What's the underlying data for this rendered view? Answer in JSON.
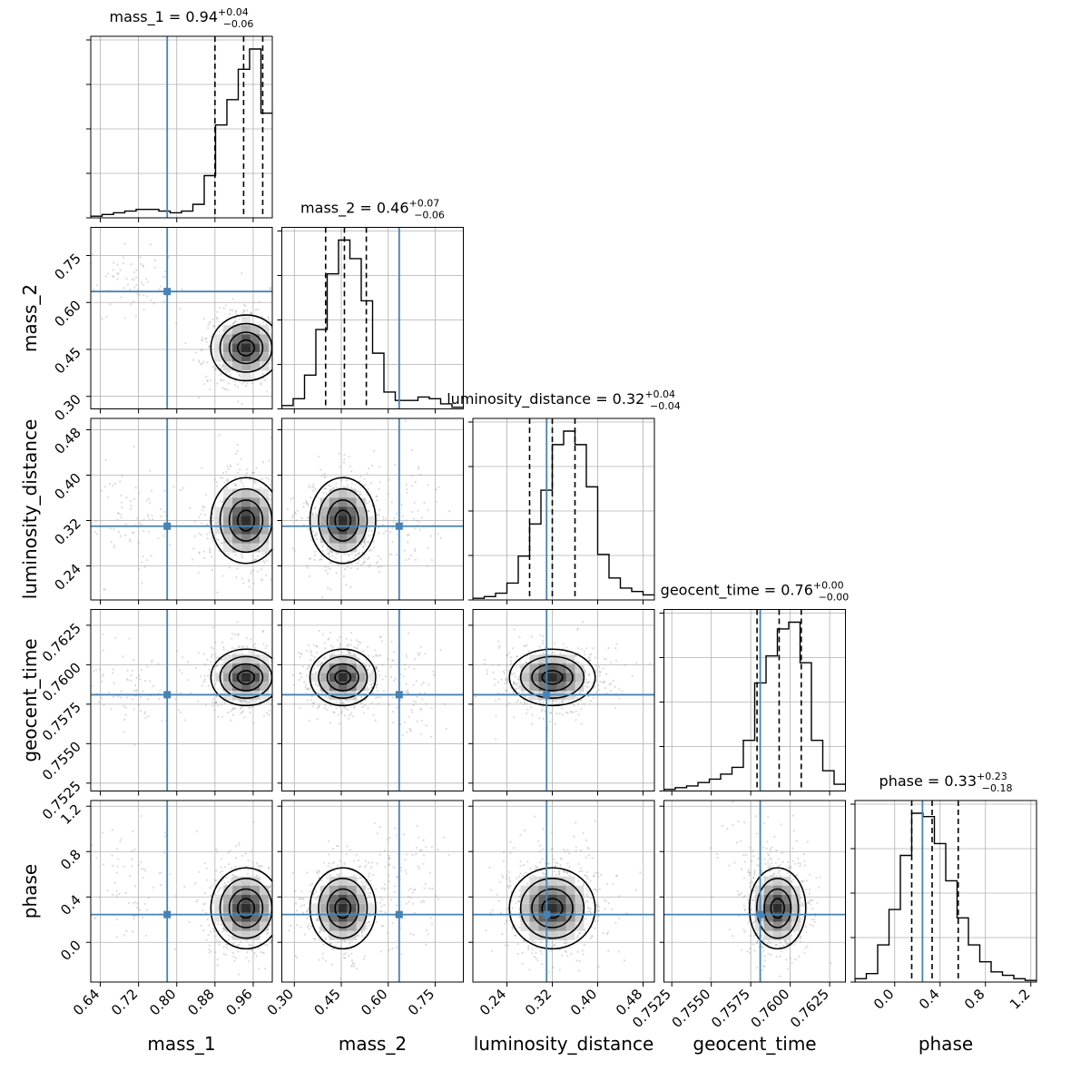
{
  "chart_data": {
    "type": "corner",
    "parameters": [
      "mass_1",
      "mass_2",
      "luminosity_distance",
      "geocent_time",
      "phase"
    ],
    "axis_labels": [
      "mass_1",
      "mass_2",
      "luminosity_distance",
      "geocent_time",
      "phase"
    ],
    "titles": [
      {
        "name": "mass_1",
        "median": "0.94",
        "plus": "+0.04",
        "minus": "−0.06"
      },
      {
        "name": "mass_2",
        "median": "0.46",
        "plus": "+0.07",
        "minus": "−0.06"
      },
      {
        "name": "luminosity_distance",
        "median": "0.32",
        "plus": "+0.04",
        "minus": "−0.04"
      },
      {
        "name": "geocent_time",
        "median": "0.76",
        "plus": "+0.00",
        "minus": "−0.00"
      },
      {
        "name": "phase",
        "median": "0.33",
        "plus": "+0.23",
        "minus": "−0.18"
      }
    ],
    "ranges": [
      [
        0.62,
        1.0
      ],
      [
        0.26,
        0.84
      ],
      [
        0.18,
        0.5
      ],
      [
        0.752,
        0.7635
      ],
      [
        -0.35,
        1.25
      ]
    ],
    "ticks": [
      [
        "0.64",
        "0.72",
        "0.80",
        "0.88",
        "0.96"
      ],
      [
        "0.30",
        "0.45",
        "0.60",
        "0.75"
      ],
      [
        "0.24",
        "0.32",
        "0.40",
        "0.48"
      ],
      [
        "0.7525",
        "0.7550",
        "0.7575",
        "0.7600",
        "0.7625"
      ],
      [
        "0.0",
        "0.4",
        "0.8",
        "1.2"
      ]
    ],
    "injection": [
      0.78,
      0.635,
      0.31,
      0.7581,
      0.245
    ],
    "quantiles": [
      [
        0.88,
        0.94,
        0.98
      ],
      [
        0.4,
        0.46,
        0.53
      ],
      [
        0.28,
        0.32,
        0.36
      ],
      [
        0.7579,
        0.7593,
        0.7607
      ],
      [
        0.15,
        0.33,
        0.56
      ]
    ],
    "histograms": [
      [
        1,
        2,
        3,
        4,
        5,
        5,
        4,
        3,
        4,
        8,
        25,
        55,
        70,
        88,
        100,
        62
      ],
      [
        2,
        6,
        20,
        47,
        80,
        100,
        89,
        64,
        33,
        10,
        5,
        5,
        7,
        6,
        3,
        1
      ],
      [
        1,
        2,
        4,
        10,
        26,
        45,
        65,
        92,
        100,
        92,
        67,
        27,
        13,
        7,
        5,
        3
      ],
      [
        1,
        2,
        3,
        5,
        7,
        10,
        14,
        30,
        64,
        80,
        96,
        100,
        76,
        30,
        12,
        4
      ],
      [
        2,
        5,
        22,
        43,
        75,
        100,
        98,
        82,
        60,
        38,
        22,
        12,
        6,
        4,
        2,
        1
      ]
    ],
    "ylabels_shown": [
      "mass_2",
      "luminosity_distance",
      "geocent_time",
      "phase"
    ],
    "xlabels_shown": [
      "mass_1",
      "mass_2",
      "luminosity_distance",
      "geocent_time",
      "phase"
    ],
    "grid": true,
    "colors": {
      "line": "#000000",
      "truth": "#4682b4",
      "grid": "#b0b0b0",
      "scatter": "#999999"
    }
  }
}
